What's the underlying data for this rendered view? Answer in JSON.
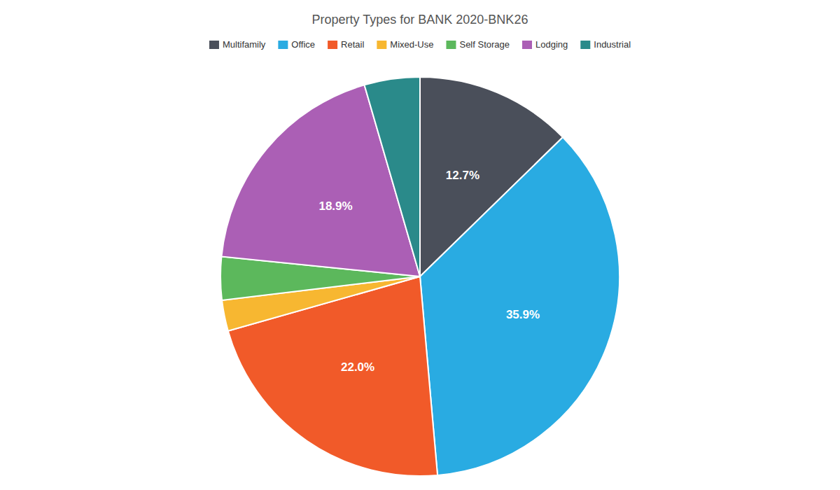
{
  "chart_data": {
    "type": "pie",
    "title": "Property Types for BANK 2020-BNK26",
    "categories": [
      "Multifamily",
      "Office",
      "Retail",
      "Mixed-Use",
      "Self Storage",
      "Lodging",
      "Industrial"
    ],
    "values": [
      12.7,
      35.9,
      22.0,
      2.5,
      3.5,
      18.9,
      4.5
    ],
    "value_labels": [
      "12.7%",
      "35.9%",
      "22.0%",
      null,
      null,
      "18.9%",
      null
    ],
    "colors": [
      "#4a4f5a",
      "#29abe2",
      "#f15a29",
      "#f7b731",
      "#5cb85c",
      "#ab5fb5",
      "#2a8a8a"
    ],
    "data_labels": true,
    "legend": "top"
  }
}
